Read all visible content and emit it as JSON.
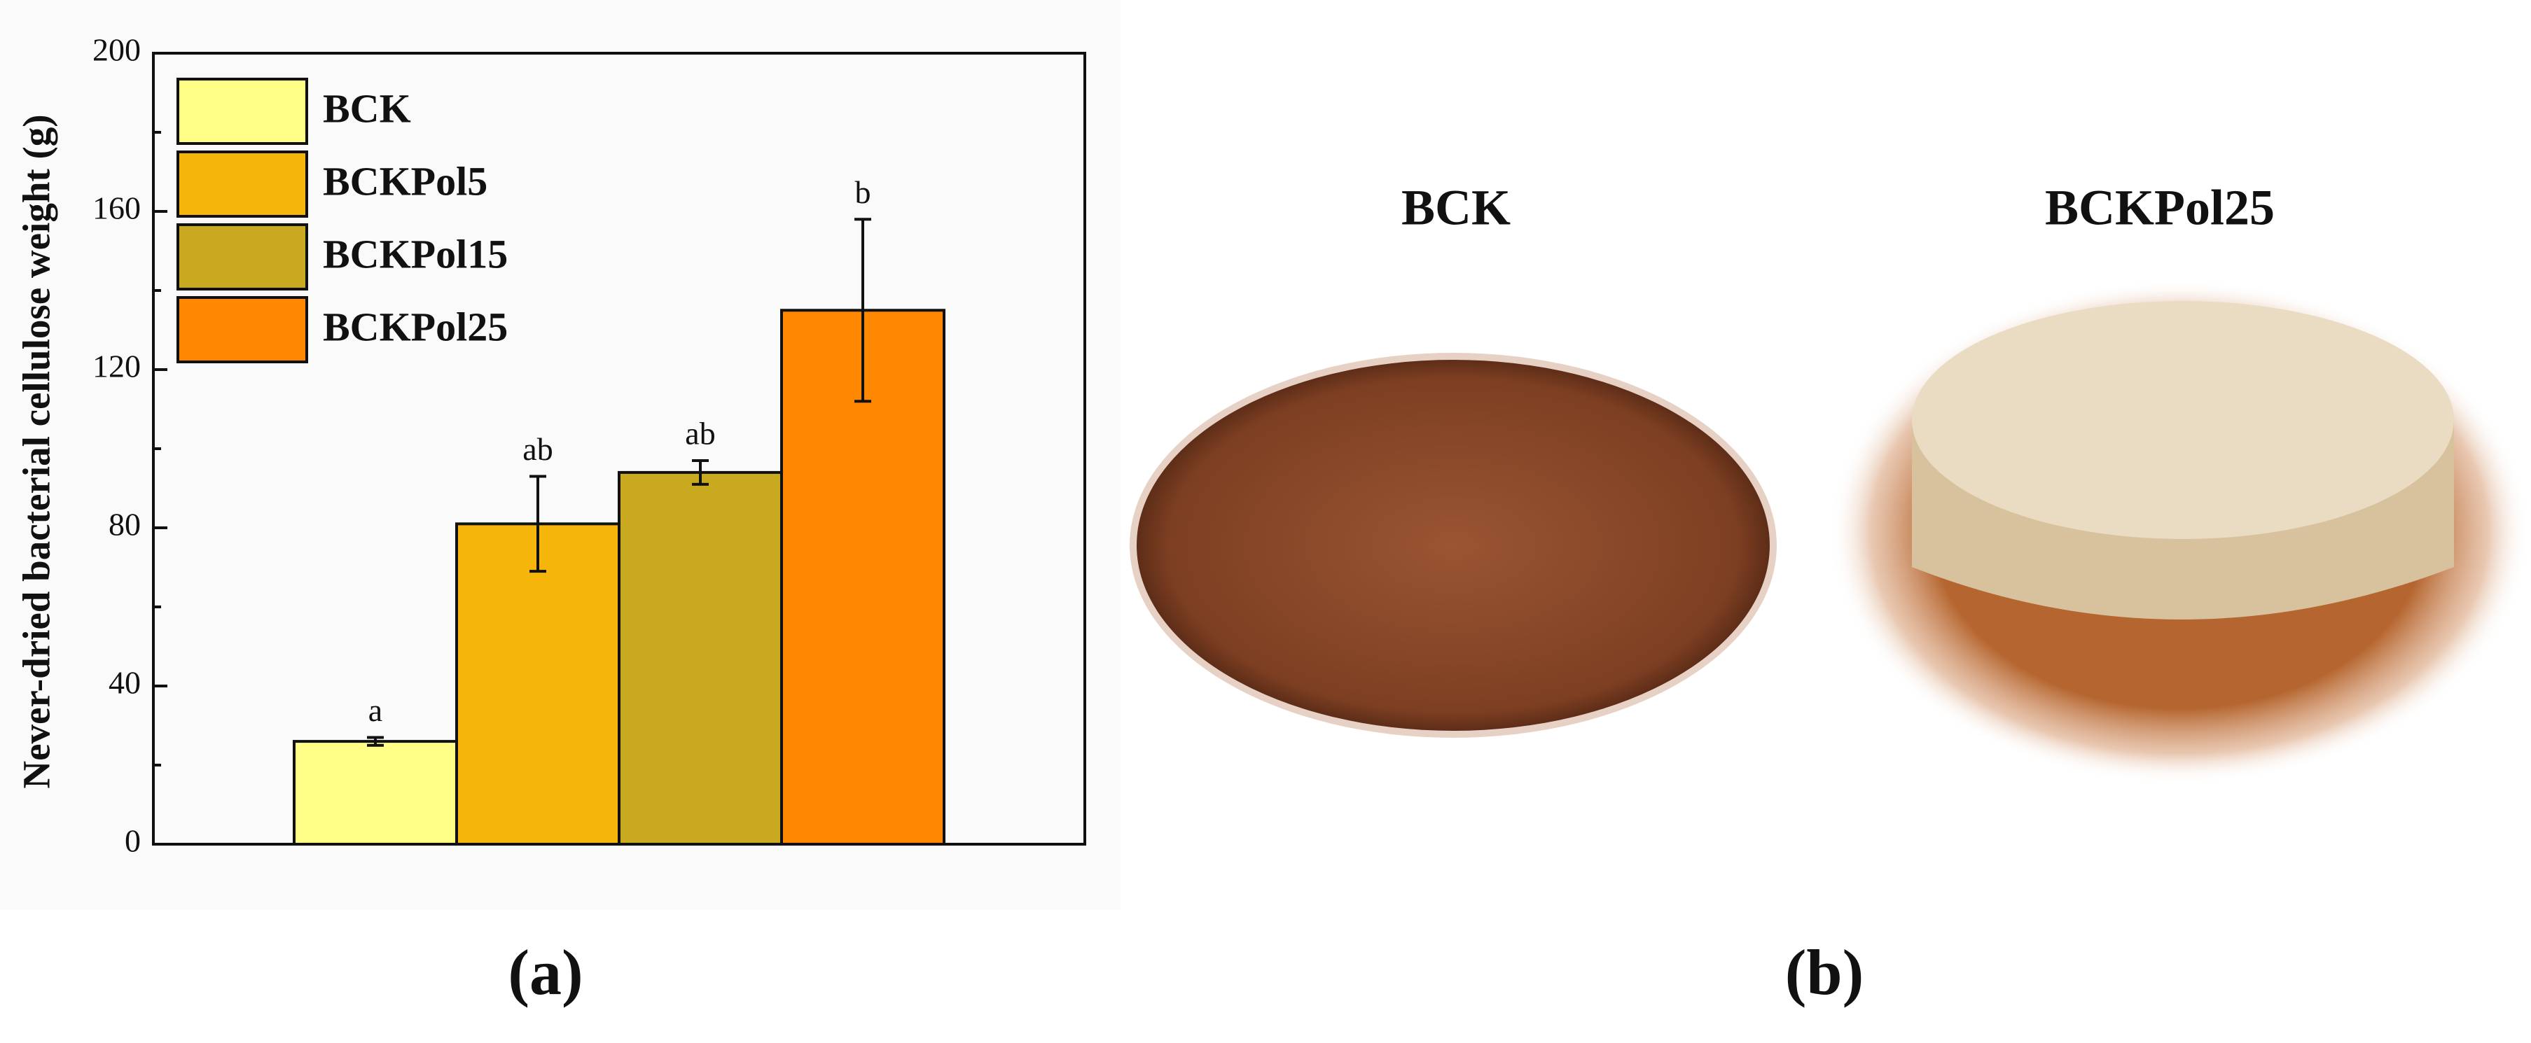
{
  "chart_data": {
    "type": "bar",
    "y_label": "Never-dried bacterial cellulose weight (g)",
    "series": [
      {
        "name": "BCK",
        "color": "#ffff88",
        "values": [
          26
        ],
        "errors": [
          1
        ]
      },
      {
        "name": "BCKPol5",
        "color": "#f5b50a",
        "values": [
          81
        ],
        "errors": [
          12
        ]
      },
      {
        "name": "BCKPol15",
        "color": "#c8a920",
        "values": [
          94
        ],
        "errors": [
          3
        ]
      },
      {
        "name": "BCKPol25",
        "color": "#ff8800",
        "values": [
          135
        ],
        "errors": [
          23
        ]
      }
    ],
    "annotations": [
      "a",
      "ab",
      "ab",
      "b"
    ],
    "ylim": [
      0,
      200
    ],
    "yticks": [
      0,
      40,
      80,
      120,
      160,
      200
    ],
    "legend": "upper left"
  },
  "photo_labels": [
    "BCK",
    "BCKPol25"
  ],
  "panel_labels": [
    "(a)",
    "(b)"
  ]
}
